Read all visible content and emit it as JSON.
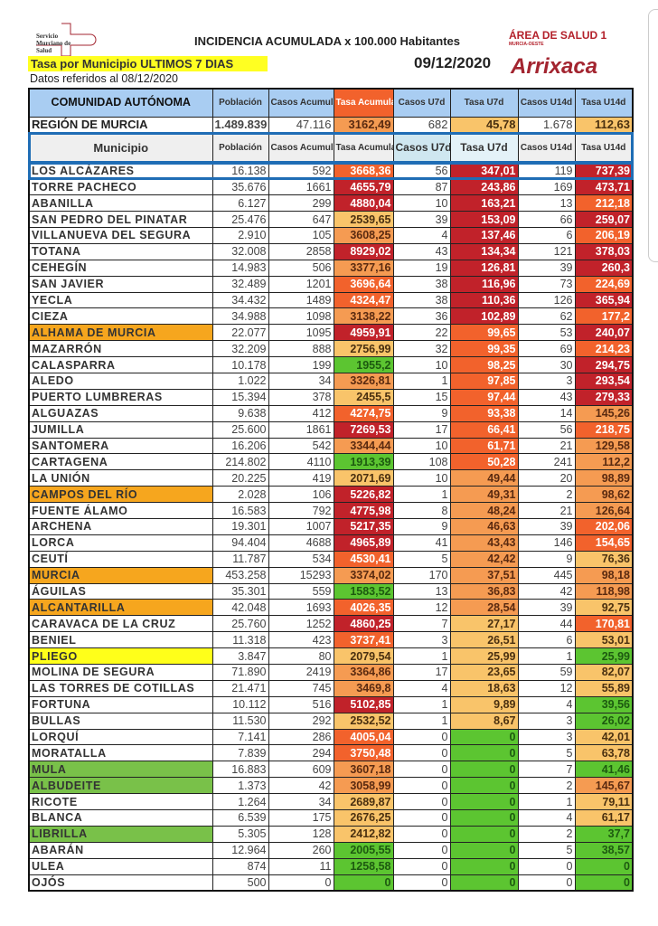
{
  "header": {
    "logo_text": "Servicio Murciano de Salud",
    "title": "INCIDENCIA ACUMULADA x 100.000 Habitantes",
    "area": "ÁREA DE SALUD 1",
    "area_sub": "MURCIA-OESTE",
    "subtitle": "Tasa por Municipio ULTIMOS 7 DIAS",
    "date": "09/12/2020",
    "brand": "Arrixaca",
    "reference": "Datos referidos al 08/12/2020"
  },
  "colors": {
    "R": "#c1222a",
    "O": "#f2622c",
    "o": "#f59b52",
    "y": "#f9c46a",
    "g": "#5cc531",
    "header_blue": "#a9cdf2",
    "frame_blue": "#1f6db5"
  },
  "columns_top": [
    "COMUNIDAD AUTÓNOMA",
    "Población",
    "Casos Acumulados",
    "Tasa Acumulada",
    "Casos U7d",
    "Tasa U7d",
    "Casos U14d",
    "Tasa U14d"
  ],
  "region": {
    "name": "REGIÓN DE MURCIA",
    "poblacion": "1.489.839",
    "casos": "47.116",
    "tasa": "3162,49",
    "tasa_c": "o",
    "cu7": "682",
    "tu7": "45,78",
    "tu7_c": "y",
    "cu14": "1.678",
    "tu14": "112,63",
    "tu14_c": "y"
  },
  "columns": [
    "Municipio",
    "Población",
    "Casos Acumulados",
    "Tasa Acumulada",
    "Casos U7d",
    "Tasa U7d",
    "Casos U14d",
    "Tasa U14d"
  ],
  "rows": [
    [
      "LOS ALCÁZARES",
      "16.138",
      "592",
      "3668,36",
      "O",
      "56",
      "347,01",
      "R",
      "119",
      "737,39",
      "R",
      ""
    ],
    [
      "TORRE PACHECO",
      "35.676",
      "1661",
      "4655,79",
      "R",
      "87",
      "243,86",
      "R",
      "169",
      "473,71",
      "R",
      ""
    ],
    [
      "ABANILLA",
      "6.127",
      "299",
      "4880,04",
      "R",
      "10",
      "163,21",
      "R",
      "13",
      "212,18",
      "O",
      ""
    ],
    [
      "SAN PEDRO DEL PINATAR",
      "25.476",
      "647",
      "2539,65",
      "y",
      "39",
      "153,09",
      "R",
      "66",
      "259,07",
      "R",
      ""
    ],
    [
      "VILLANUEVA DEL SEGURA",
      "2.910",
      "105",
      "3608,25",
      "o",
      "4",
      "137,46",
      "R",
      "6",
      "206,19",
      "O",
      ""
    ],
    [
      "TOTANA",
      "32.008",
      "2858",
      "8929,02",
      "R",
      "43",
      "134,34",
      "R",
      "121",
      "378,03",
      "R",
      ""
    ],
    [
      "CEHEGÍN",
      "14.983",
      "506",
      "3377,16",
      "o",
      "19",
      "126,81",
      "R",
      "39",
      "260,3",
      "R",
      ""
    ],
    [
      "SAN JAVIER",
      "32.489",
      "1201",
      "3696,64",
      "O",
      "38",
      "116,96",
      "R",
      "73",
      "224,69",
      "O",
      ""
    ],
    [
      "YECLA",
      "34.432",
      "1489",
      "4324,47",
      "O",
      "38",
      "110,36",
      "R",
      "126",
      "365,94",
      "R",
      ""
    ],
    [
      "CIEZA",
      "34.988",
      "1098",
      "3138,22",
      "o",
      "36",
      "102,89",
      "R",
      "62",
      "177,2",
      "O",
      ""
    ],
    [
      "ALHAMA DE MURCIA",
      "22.077",
      "1095",
      "4959,91",
      "R",
      "22",
      "99,65",
      "O",
      "53",
      "240,07",
      "R",
      "orange"
    ],
    [
      "MAZARRÓN",
      "32.209",
      "888",
      "2756,99",
      "y",
      "32",
      "99,35",
      "O",
      "69",
      "214,23",
      "O",
      ""
    ],
    [
      "CALASPARRA",
      "10.178",
      "199",
      "1955,2",
      "g",
      "10",
      "98,25",
      "O",
      "30",
      "294,75",
      "R",
      ""
    ],
    [
      "ALEDO",
      "1.022",
      "34",
      "3326,81",
      "o",
      "1",
      "97,85",
      "O",
      "3",
      "293,54",
      "R",
      ""
    ],
    [
      "PUERTO LUMBRERAS",
      "15.394",
      "378",
      "2455,5",
      "y",
      "15",
      "97,44",
      "O",
      "43",
      "279,33",
      "R",
      ""
    ],
    [
      "ALGUAZAS",
      "9.638",
      "412",
      "4274,75",
      "O",
      "9",
      "93,38",
      "O",
      "14",
      "145,26",
      "o",
      ""
    ],
    [
      "JUMILLA",
      "25.600",
      "1861",
      "7269,53",
      "R",
      "17",
      "66,41",
      "O",
      "56",
      "218,75",
      "O",
      ""
    ],
    [
      "SANTOMERA",
      "16.206",
      "542",
      "3344,44",
      "o",
      "10",
      "61,71",
      "O",
      "21",
      "129,58",
      "o",
      ""
    ],
    [
      "CARTAGENA",
      "214.802",
      "4110",
      "1913,39",
      "g",
      "108",
      "50,28",
      "O",
      "241",
      "112,2",
      "o",
      ""
    ],
    [
      "LA UNIÓN",
      "20.225",
      "419",
      "2071,69",
      "y",
      "10",
      "49,44",
      "o",
      "20",
      "98,89",
      "o",
      ""
    ],
    [
      "CAMPOS DEL RÍO",
      "2.028",
      "106",
      "5226,82",
      "R",
      "1",
      "49,31",
      "o",
      "2",
      "98,62",
      "o",
      "orange"
    ],
    [
      "FUENTE ÁLAMO",
      "16.583",
      "792",
      "4775,98",
      "R",
      "8",
      "48,24",
      "o",
      "21",
      "126,64",
      "o",
      ""
    ],
    [
      "ARCHENA",
      "19.301",
      "1007",
      "5217,35",
      "R",
      "9",
      "46,63",
      "o",
      "39",
      "202,06",
      "O",
      ""
    ],
    [
      "LORCA",
      "94.404",
      "4688",
      "4965,89",
      "R",
      "41",
      "43,43",
      "o",
      "146",
      "154,65",
      "O",
      ""
    ],
    [
      "CEUTÍ",
      "11.787",
      "534",
      "4530,41",
      "O",
      "5",
      "42,42",
      "o",
      "9",
      "76,36",
      "y",
      ""
    ],
    [
      "MURCIA",
      "453.258",
      "15293",
      "3374,02",
      "o",
      "170",
      "37,51",
      "o",
      "445",
      "98,18",
      "o",
      "orange"
    ],
    [
      "ÁGUILAS",
      "35.301",
      "559",
      "1583,52",
      "g",
      "13",
      "36,83",
      "o",
      "42",
      "118,98",
      "o",
      ""
    ],
    [
      "ALCANTARILLA",
      "42.048",
      "1693",
      "4026,35",
      "O",
      "12",
      "28,54",
      "o",
      "39",
      "92,75",
      "y",
      "orange"
    ],
    [
      "CARAVACA DE LA CRUZ",
      "25.760",
      "1252",
      "4860,25",
      "R",
      "7",
      "27,17",
      "y",
      "44",
      "170,81",
      "O",
      ""
    ],
    [
      "BENIEL",
      "11.318",
      "423",
      "3737,41",
      "O",
      "3",
      "26,51",
      "y",
      "6",
      "53,01",
      "y",
      ""
    ],
    [
      "PLIEGO",
      "3.847",
      "80",
      "2079,54",
      "y",
      "1",
      "25,99",
      "y",
      "1",
      "25,99",
      "g",
      "yellow"
    ],
    [
      "MOLINA DE SEGURA",
      "71.890",
      "2419",
      "3364,86",
      "o",
      "17",
      "23,65",
      "y",
      "59",
      "82,07",
      "y",
      ""
    ],
    [
      "LAS TORRES DE COTILLAS",
      "21.471",
      "745",
      "3469,8",
      "o",
      "4",
      "18,63",
      "y",
      "12",
      "55,89",
      "y",
      ""
    ],
    [
      "FORTUNA",
      "10.112",
      "516",
      "5102,85",
      "R",
      "1",
      "9,89",
      "y",
      "4",
      "39,56",
      "g",
      ""
    ],
    [
      "BULLAS",
      "11.530",
      "292",
      "2532,52",
      "y",
      "1",
      "8,67",
      "y",
      "3",
      "26,02",
      "g",
      ""
    ],
    [
      "LORQUÍ",
      "7.141",
      "286",
      "4005,04",
      "O",
      "0",
      "0",
      "g",
      "3",
      "42,01",
      "y",
      ""
    ],
    [
      "MORATALLA",
      "7.839",
      "294",
      "3750,48",
      "O",
      "0",
      "0",
      "g",
      "5",
      "63,78",
      "y",
      ""
    ],
    [
      "MULA",
      "16.883",
      "609",
      "3607,18",
      "o",
      "0",
      "0",
      "g",
      "7",
      "41,46",
      "g",
      "green"
    ],
    [
      "ALBUDEITE",
      "1.373",
      "42",
      "3058,99",
      "o",
      "0",
      "0",
      "g",
      "2",
      "145,67",
      "o",
      "green"
    ],
    [
      "RICOTE",
      "1.264",
      "34",
      "2689,87",
      "y",
      "0",
      "0",
      "g",
      "1",
      "79,11",
      "y",
      ""
    ],
    [
      "BLANCA",
      "6.539",
      "175",
      "2676,25",
      "y",
      "0",
      "0",
      "g",
      "4",
      "61,17",
      "y",
      ""
    ],
    [
      "LIBRILLA",
      "5.305",
      "128",
      "2412,82",
      "y",
      "0",
      "0",
      "g",
      "2",
      "37,7",
      "g",
      "green"
    ],
    [
      "ABARÁN",
      "12.964",
      "260",
      "2005,55",
      "g",
      "0",
      "0",
      "g",
      "5",
      "38,57",
      "g",
      ""
    ],
    [
      "ULEA",
      "874",
      "11",
      "1258,58",
      "g",
      "0",
      "0",
      "g",
      "0",
      "0",
      "g",
      ""
    ],
    [
      "OJÓS",
      "500",
      "0",
      "0",
      "g",
      "0",
      "0",
      "g",
      "0",
      "0",
      "g",
      ""
    ]
  ]
}
